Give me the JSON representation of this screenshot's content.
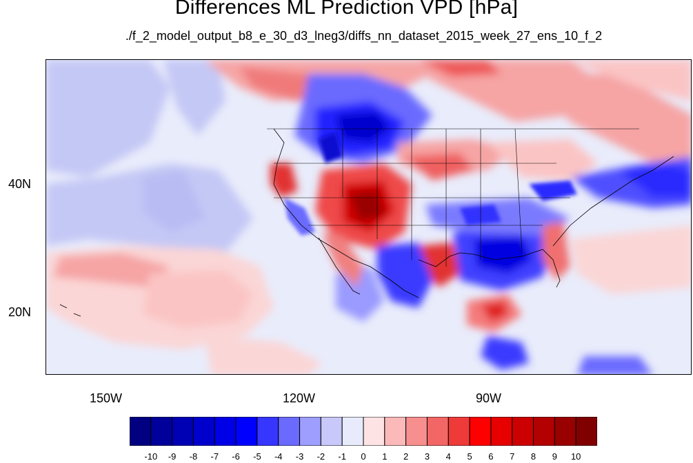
{
  "title": "Differences ML Prediction VPD [hPa]",
  "subtitle": "./f_2_model_output_b8_e_30_d3_lneg3/diffs_nn_dataset_2015_week_27_ens_10_f_2",
  "axes": {
    "x_labels": [
      "150W",
      "120W",
      "90W"
    ],
    "y_labels": [
      "40N",
      "20N"
    ]
  },
  "colorbar": {
    "labels": [
      "-10",
      "-9",
      "-8",
      "-7",
      "-6",
      "-5",
      "-4",
      "-3",
      "-2",
      "-1",
      "0",
      "1",
      "2",
      "3",
      "4",
      "5",
      "6",
      "7",
      "8",
      "9",
      "10"
    ],
    "colors": [
      "#000080",
      "#00009a",
      "#0000b4",
      "#0000cd",
      "#0000e6",
      "#0000ff",
      "#3636ff",
      "#6a6aff",
      "#9e9eff",
      "#c8c8fb",
      "#e8ebfb",
      "#fde3e3",
      "#fbb9b9",
      "#f78f8f",
      "#f36666",
      "#ef3a3a",
      "#ff0000",
      "#e60000",
      "#cc0000",
      "#b30000",
      "#990000",
      "#800000"
    ]
  }
}
